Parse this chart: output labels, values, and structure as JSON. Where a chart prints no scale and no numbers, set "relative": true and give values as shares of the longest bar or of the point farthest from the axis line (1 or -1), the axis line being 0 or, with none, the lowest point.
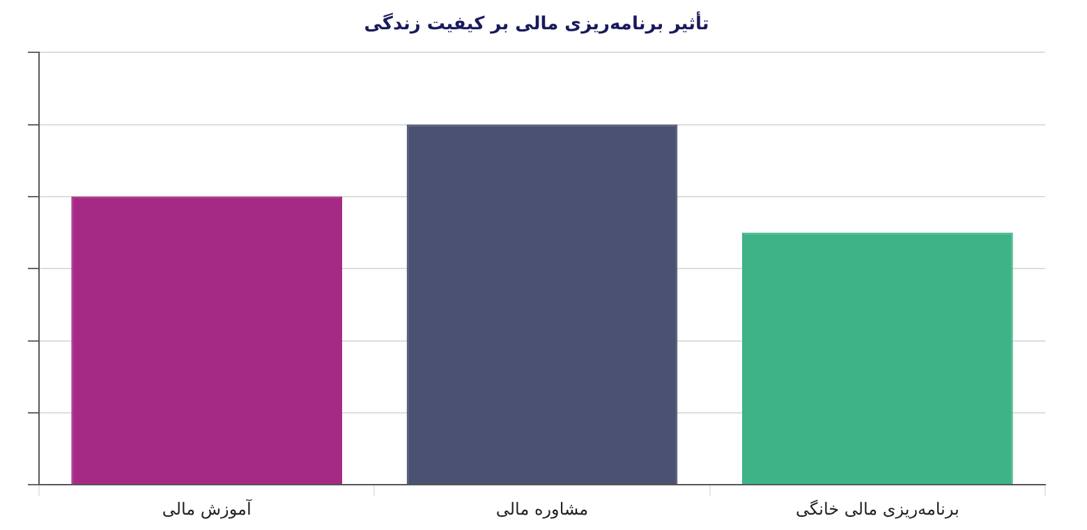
{
  "chart_data": {
    "type": "bar",
    "title": "تأثیر برنامه‌ریزی مالی بر کیفیت زندگی",
    "categories": [
      "آموزش مالی",
      "مشاوره مالی",
      "برنامه‌ریزی مالی خانگی"
    ],
    "values": [
      0.8,
      1,
      0.7
    ],
    "colors": [
      "#a52a86",
      "#4b5170",
      "#3db387"
    ],
    "relative": true,
    "grid": true,
    "legend": false
  }
}
